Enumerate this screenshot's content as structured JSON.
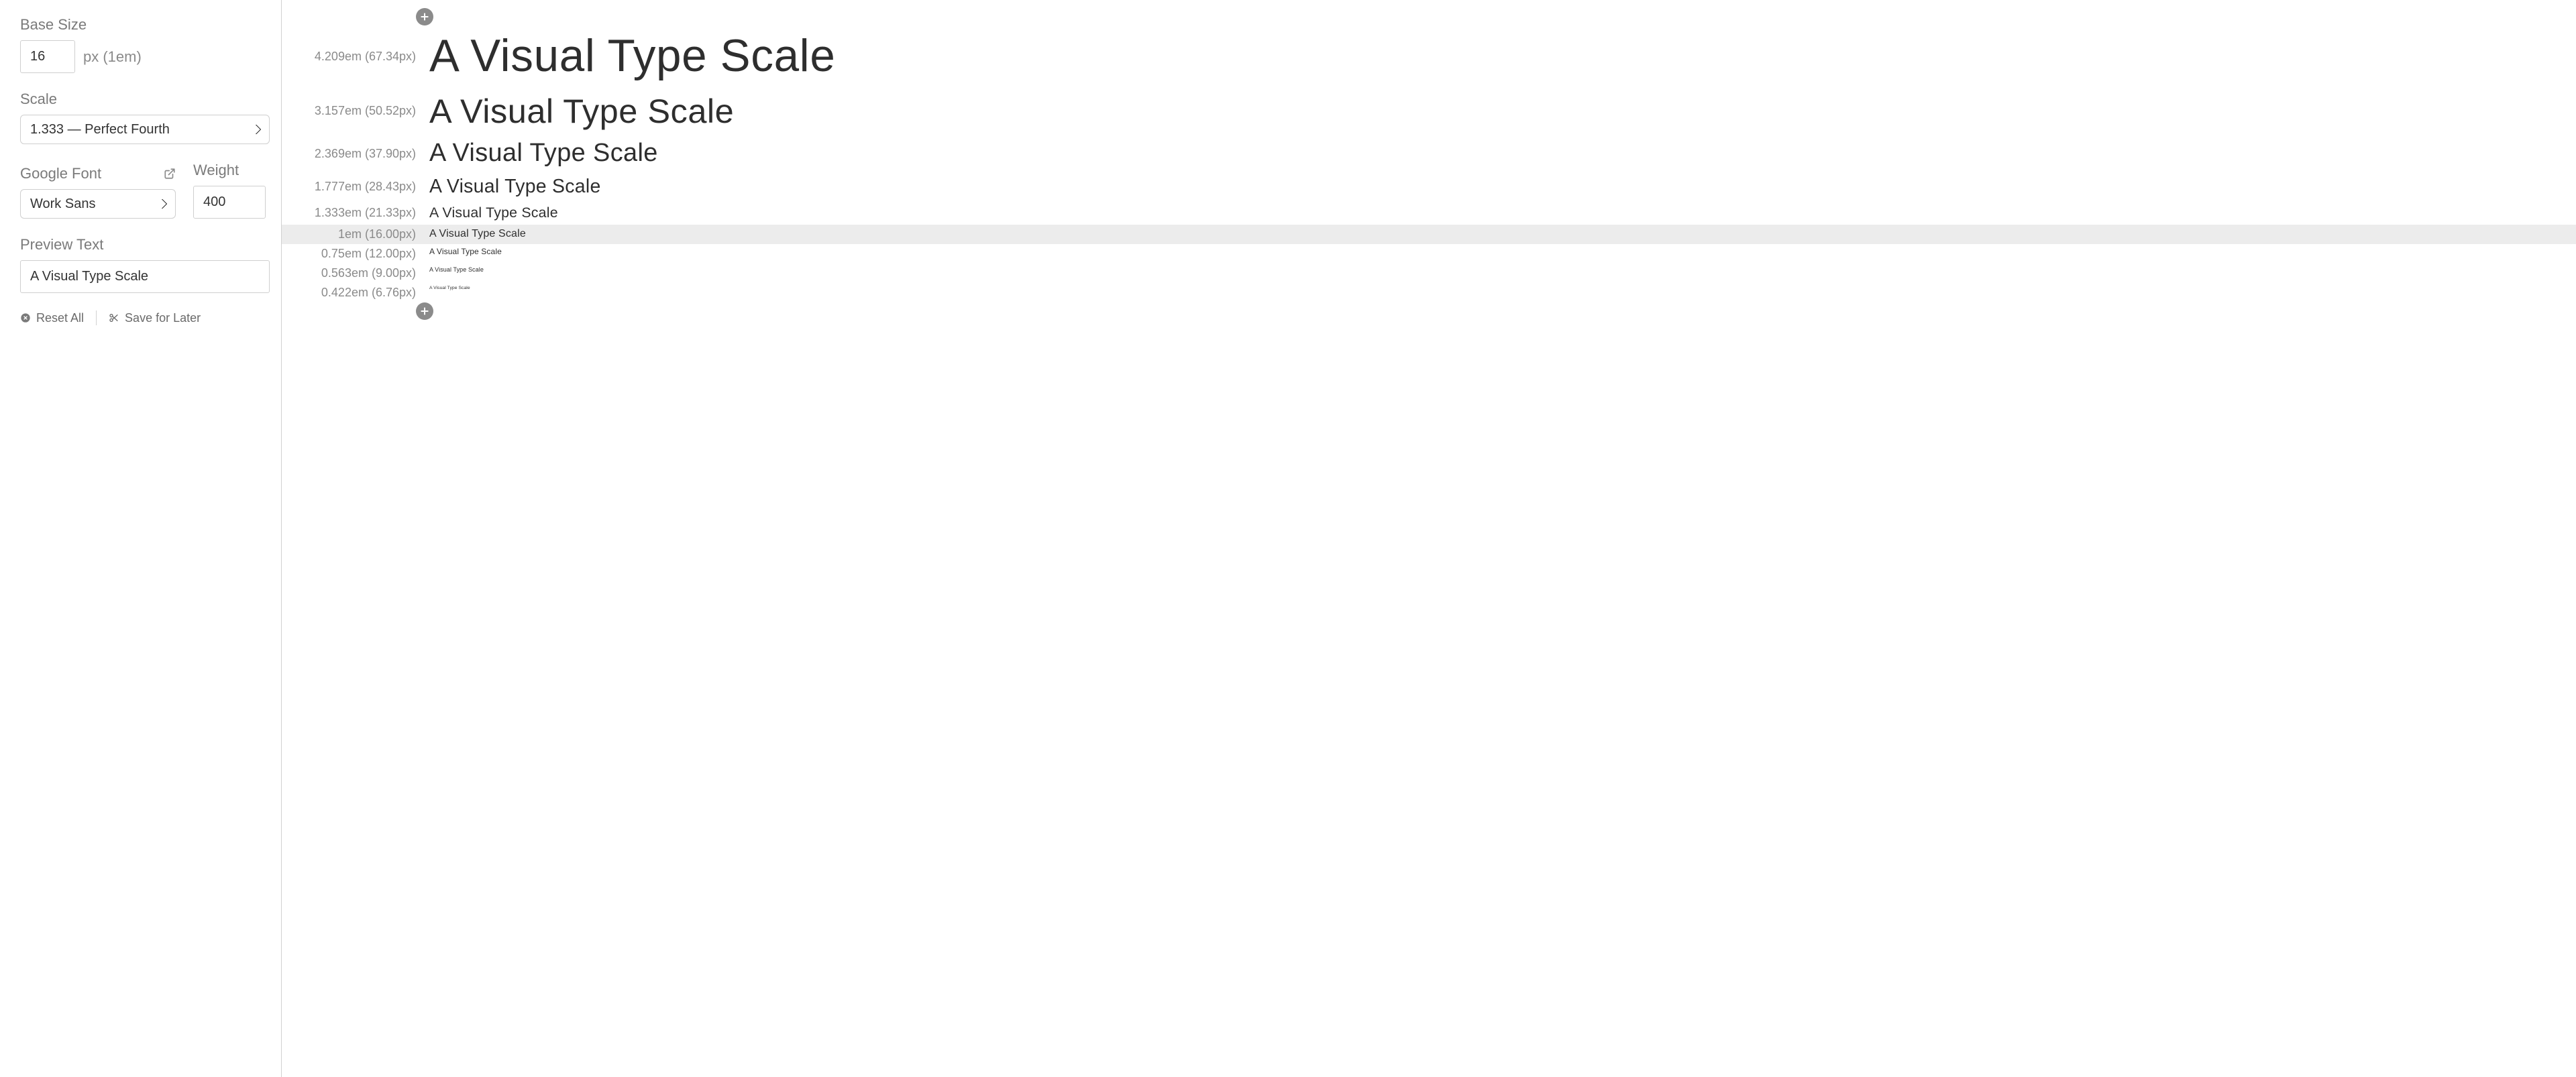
{
  "sidebar": {
    "base_size": {
      "label": "Base Size",
      "value": "16",
      "suffix": "px (1em)"
    },
    "scale": {
      "label": "Scale",
      "value": "1.333 — Perfect Fourth"
    },
    "google_font": {
      "label": "Google Font",
      "value": "Work Sans"
    },
    "weight": {
      "label": "Weight",
      "value": "400"
    },
    "preview_text": {
      "label": "Preview Text",
      "value": "A Visual Type Scale"
    },
    "reset_label": "Reset All",
    "save_label": "Save for Later"
  },
  "preview": {
    "sample_text": "A Visual Type Scale",
    "rows": [
      {
        "em": "4.209em",
        "px": "67.34px",
        "font_size_px": 67.34,
        "highlight": false
      },
      {
        "em": "3.157em",
        "px": "50.52px",
        "font_size_px": 50.52,
        "highlight": false
      },
      {
        "em": "2.369em",
        "px": "37.90px",
        "font_size_px": 37.9,
        "highlight": false
      },
      {
        "em": "1.777em",
        "px": "28.43px",
        "font_size_px": 28.43,
        "highlight": false
      },
      {
        "em": "1.333em",
        "px": "21.33px",
        "font_size_px": 21.33,
        "highlight": false
      },
      {
        "em": "1em",
        "px": "16.00px",
        "font_size_px": 16.0,
        "highlight": true
      },
      {
        "em": "0.75em",
        "px": "12.00px",
        "font_size_px": 12.0,
        "highlight": false
      },
      {
        "em": "0.563em",
        "px": "9.00px",
        "font_size_px": 9.0,
        "highlight": false
      },
      {
        "em": "0.422em",
        "px": "6.76px",
        "font_size_px": 6.76,
        "highlight": false
      }
    ]
  },
  "colors": {
    "text_muted": "#8a8a8a",
    "text_body": "#2e2e2e",
    "border": "#cfcfcf",
    "divider": "#d1d1d1",
    "highlight_bg": "#ececec",
    "add_btn_bg": "#8b8b8b",
    "background": "#ffffff"
  }
}
